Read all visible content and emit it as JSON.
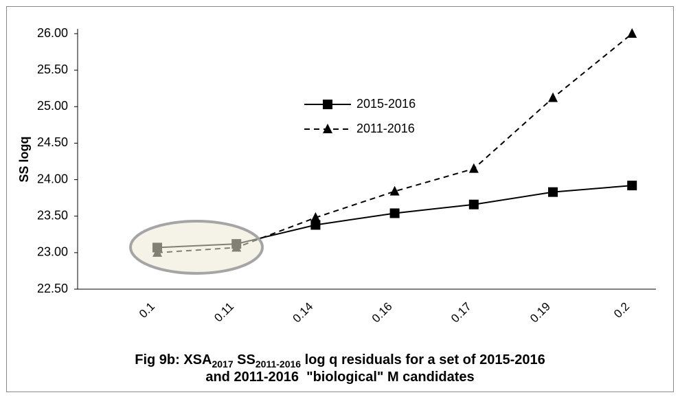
{
  "chart_data": {
    "type": "line",
    "title_lines": [
      [
        {
          "text": "Fig 9b: XSA"
        },
        {
          "text": "2017",
          "sub": true
        },
        {
          "text": " SS"
        },
        {
          "text": "2011-2016",
          "sub": true
        },
        {
          "text": " log q residuals for a set of 2015-2016"
        }
      ],
      [
        {
          "text": "and 2011-2016  \"biological\" M candidates"
        }
      ]
    ],
    "y_label": "SS logq",
    "categories": [
      "0.1",
      "0.11",
      "0.14",
      "0.16",
      "0.17",
      "0.19",
      "0.2"
    ],
    "series": [
      {
        "name": "2015-2016",
        "color": "#000000",
        "marker": "square",
        "dashed": false,
        "values": [
          23.07,
          23.12,
          23.38,
          23.54,
          23.66,
          23.83,
          23.92
        ]
      },
      {
        "name": "2011-2016",
        "color": "#000000",
        "marker": "triangle",
        "dashed": true,
        "values": [
          23.0,
          23.07,
          23.48,
          23.84,
          24.15,
          25.12,
          26.0
        ]
      }
    ],
    "ylim": [
      22.5,
      26.0
    ],
    "yticks": [
      {
        "value": 22.5,
        "label": "22.50"
      },
      {
        "value": 23,
        "label": "23.00"
      },
      {
        "value": 23.5,
        "label": "23.50"
      },
      {
        "value": 24,
        "label": "24.00"
      },
      {
        "value": 24.5,
        "label": "24.50"
      },
      {
        "value": 25,
        "label": "25.00"
      },
      {
        "value": 25.5,
        "label": "25.50"
      },
      {
        "value": 26,
        "label": "26.00"
      }
    ],
    "grid": false
  }
}
